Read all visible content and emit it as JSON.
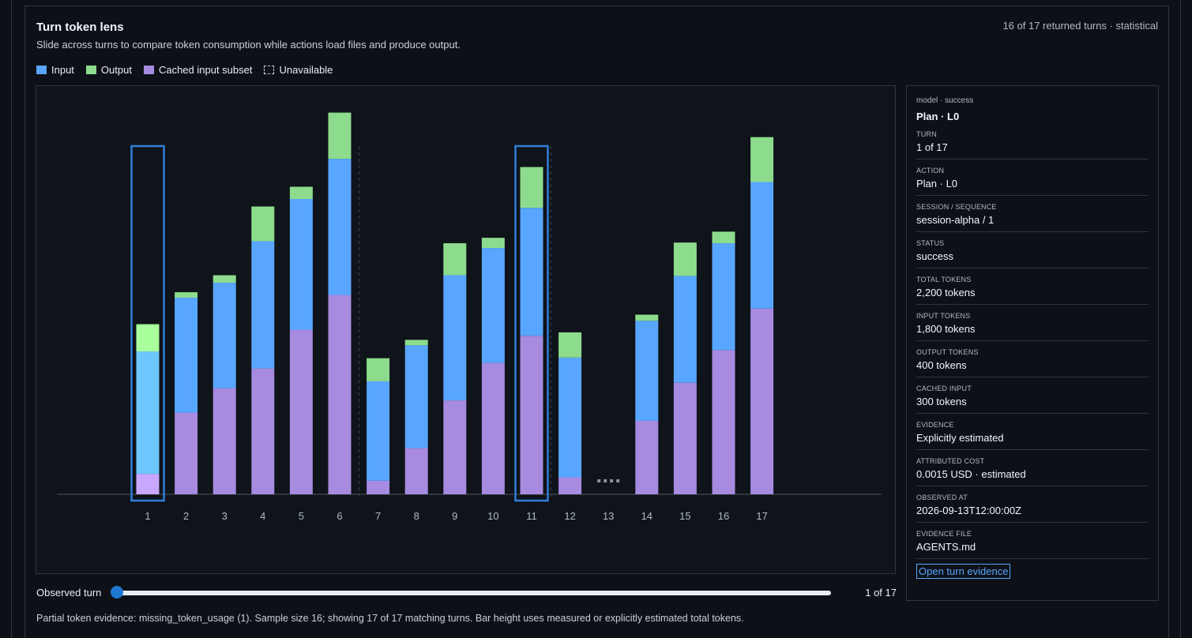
{
  "header": {
    "title": "Turn token lens",
    "subtitle": "Slide across turns to compare token consumption while actions load files and produce output.",
    "meta": "16 of 17 returned turns · statistical"
  },
  "legend": [
    {
      "label": "Input",
      "color": "#58a6ff"
    },
    {
      "label": "Output",
      "color": "#8ddb8c"
    },
    {
      "label": "Cached input subset",
      "color": "#a68be0"
    },
    {
      "label": "Unavailable",
      "color": "none"
    }
  ],
  "colors": {
    "input": "#58a6ff",
    "output": "#8ddb8c",
    "cached": "#a68be0",
    "selected_input": "#6cc7ff",
    "selected_output": "#a8ff9c",
    "selected_cached": "#c8a8ff",
    "highlight": "#2f7fd8"
  },
  "chart_data": {
    "type": "bar",
    "stacked": true,
    "categories": [
      "1",
      "2",
      "3",
      "4",
      "5",
      "6",
      "7",
      "8",
      "9",
      "10",
      "11",
      "12",
      "13",
      "14",
      "15",
      "16",
      "17"
    ],
    "series": [
      {
        "name": "Input",
        "values": [
          1800,
          1690,
          1550,
          1870,
          1920,
          2000,
          1460,
          1510,
          1840,
          1690,
          1880,
          1760,
          null,
          1470,
          1570,
          1570,
          1860
        ]
      },
      {
        "name": "Output",
        "values": [
          400,
          80,
          110,
          510,
          180,
          680,
          340,
          80,
          470,
          150,
          600,
          370,
          null,
          90,
          490,
          170,
          660
        ]
      },
      {
        "name": "Cached input subset",
        "values": [
          300,
          1200,
          1560,
          1850,
          2420,
          2930,
          200,
          680,
          1380,
          1930,
          2330,
          250,
          null,
          1080,
          1640,
          2120,
          2730
        ]
      }
    ],
    "unavailable": [
      "13"
    ],
    "selected": "1",
    "highlighted": [
      "1",
      "11"
    ],
    "dividers_after": [
      "6",
      "11"
    ],
    "ylim": [
      0,
      6000
    ]
  },
  "detail": {
    "kicker": "model · success",
    "title": "Plan · L0",
    "rows": [
      {
        "label": "Turn",
        "value": "1 of 17"
      },
      {
        "label": "Action",
        "value": "Plan · L0"
      },
      {
        "label": "Session / sequence",
        "value": "session-alpha / 1"
      },
      {
        "label": "Status",
        "value": "success"
      },
      {
        "label": "Total tokens",
        "value": "2,200 tokens"
      },
      {
        "label": "Input tokens",
        "value": "1,800 tokens"
      },
      {
        "label": "Output tokens",
        "value": "400 tokens"
      },
      {
        "label": "Cached input",
        "value": "300 tokens"
      },
      {
        "label": "Evidence",
        "value": "Explicitly estimated"
      },
      {
        "label": "Attributed cost",
        "value": "0.0015 USD · estimated"
      },
      {
        "label": "Observed at",
        "value": "2026-09-13T12:00:00Z"
      },
      {
        "label": "Evidence file",
        "value": "AGENTS.md"
      }
    ],
    "button": "Open turn evidence"
  },
  "slider": {
    "label": "Observed turn",
    "value": 1,
    "max": 17,
    "count_text": "1 of 17"
  },
  "footnote": "Partial token evidence: missing_token_usage (1). Sample size 16; showing 17 of 17 matching turns. Bar height uses measured or explicitly estimated total tokens."
}
